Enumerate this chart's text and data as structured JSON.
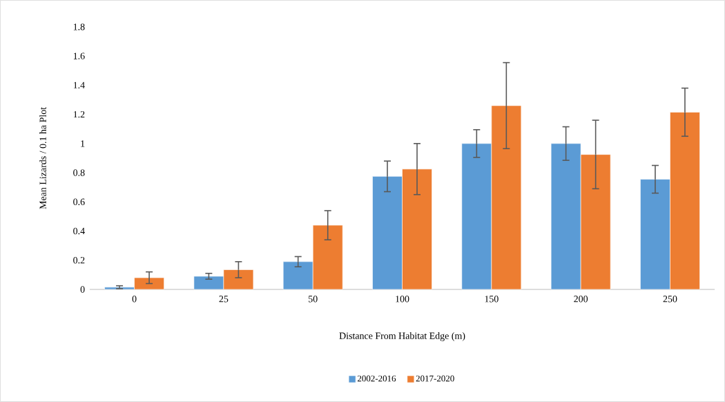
{
  "chart_data": {
    "type": "bar",
    "xlabel": "Distance From Habitat Edge (m)",
    "ylabel": "Mean Lizards  / 0.1 ha Plot",
    "categories": [
      "0",
      "25",
      "50",
      "100",
      "150",
      "200",
      "250"
    ],
    "series": [
      {
        "name": "2002-2016",
        "color": "#5b9bd5",
        "values": [
          0.015,
          0.09,
          0.19,
          0.775,
          1.0,
          1.0,
          0.755
        ],
        "errors": [
          0.01,
          0.02,
          0.035,
          0.105,
          0.095,
          0.115,
          0.095
        ]
      },
      {
        "name": "2017-2020",
        "color": "#ed7d31",
        "values": [
          0.08,
          0.135,
          0.44,
          0.825,
          1.26,
          0.925,
          1.215
        ],
        "errors": [
          0.04,
          0.055,
          0.1,
          0.175,
          0.295,
          0.235,
          0.165
        ]
      }
    ],
    "ylim": [
      0,
      1.8
    ],
    "yticks": [
      0,
      0.2,
      0.4,
      0.6,
      0.8,
      1,
      1.2,
      1.4,
      1.6,
      1.8
    ],
    "legend": "bottom"
  }
}
